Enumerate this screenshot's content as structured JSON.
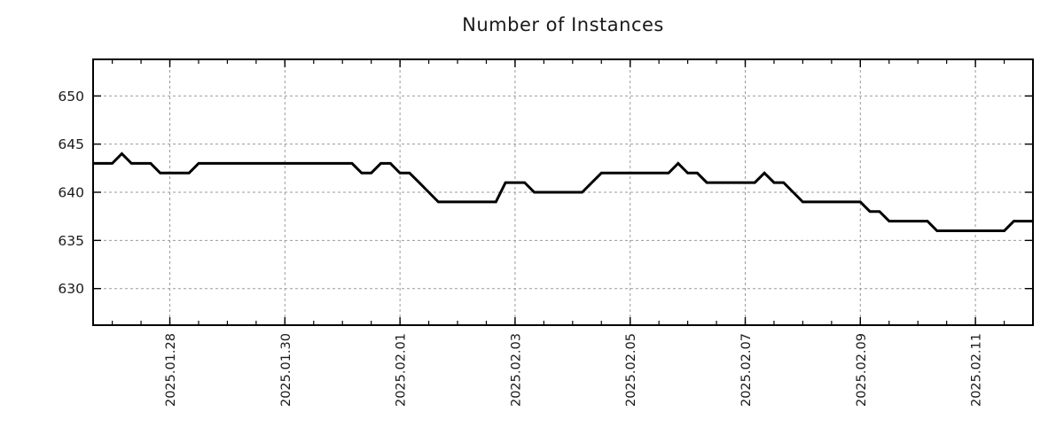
{
  "chart_data": {
    "type": "line",
    "title": "Number of Instances",
    "series_name": "Number of Instances",
    "line_color": "#000000",
    "grid_color": "#9a9a9a",
    "tick_color": "#000000",
    "label_color": "#1a1a1a",
    "x_axis": {
      "start": "2025-01-26 16:00",
      "end": "2025-02-12 00:00",
      "sample_interval_hours": 4,
      "min_t": 0,
      "max_t": 16.3333,
      "minor_tick_start_t": 0.3333,
      "minor_tick_step": 0.5,
      "major_ticks": [
        {
          "label": "2025.01.28",
          "t": 1.3333
        },
        {
          "label": "2025.01.30",
          "t": 3.3333
        },
        {
          "label": "2025.02.01",
          "t": 5.3333
        },
        {
          "label": "2025.02.03",
          "t": 7.3333
        },
        {
          "label": "2025.02.05",
          "t": 9.3333
        },
        {
          "label": "2025.02.07",
          "t": 11.3333
        },
        {
          "label": "2025.02.09",
          "t": 13.3333
        },
        {
          "label": "2025.02.11",
          "t": 15.3333
        }
      ]
    },
    "y_axis": {
      "ticks": [
        630,
        635,
        640,
        645,
        650
      ],
      "min": 626.2,
      "max": 653.8
    },
    "grid": true,
    "legend": "none",
    "values": [
      643,
      643,
      643,
      644,
      643,
      643,
      643,
      642,
      642,
      642,
      642,
      643,
      643,
      643,
      643,
      643,
      643,
      643,
      643,
      643,
      643,
      643,
      643,
      643,
      643,
      643,
      643,
      643,
      642,
      642,
      643,
      643,
      642,
      642,
      641,
      640,
      639,
      639,
      639,
      639,
      639,
      639,
      639,
      641,
      641,
      641,
      640,
      640,
      640,
      640,
      640,
      640,
      641,
      642,
      642,
      642,
      642,
      642,
      642,
      642,
      642,
      643,
      642,
      642,
      641,
      641,
      641,
      641,
      641,
      641,
      642,
      641,
      641,
      640,
      639,
      639,
      639,
      639,
      639,
      639,
      639,
      638,
      638,
      637,
      637,
      637,
      637,
      637,
      636,
      636,
      636,
      636,
      636,
      636,
      636,
      636,
      637,
      637,
      637
    ]
  }
}
